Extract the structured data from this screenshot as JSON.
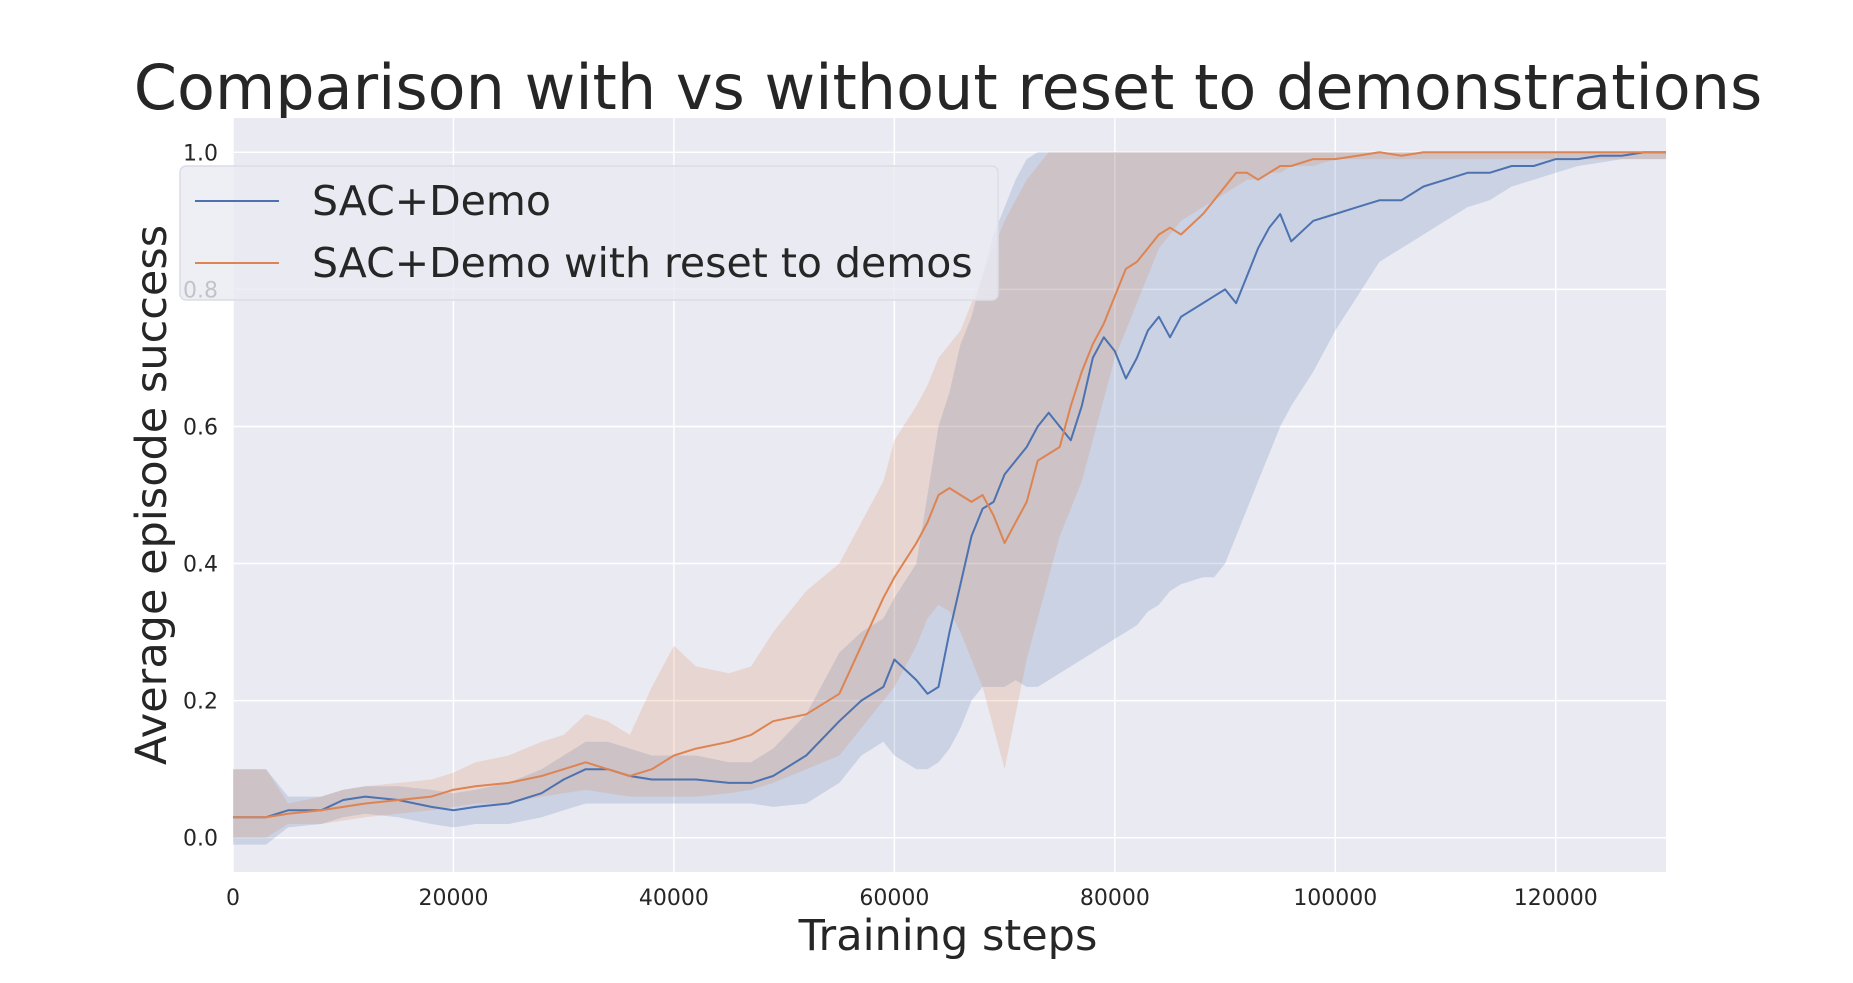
{
  "chart_data": {
    "type": "line",
    "title": "Comparison with vs without reset to demonstrations",
    "xlabel": "Training steps",
    "ylabel": "Average episode success",
    "xlim": [
      0,
      130000
    ],
    "ylim": [
      -0.05,
      1.05
    ],
    "xticks": [
      0,
      20000,
      40000,
      60000,
      80000,
      100000,
      120000
    ],
    "xtick_labels": [
      "0",
      "20000",
      "40000",
      "60000",
      "80000",
      "100000",
      "120000"
    ],
    "yticks": [
      0.0,
      0.2,
      0.4,
      0.6,
      0.8,
      1.0
    ],
    "ytick_labels": [
      "0.0",
      "0.2",
      "0.4",
      "0.6",
      "0.8",
      "1.0"
    ],
    "grid": true,
    "legend_position": "top-left",
    "background": "#eaeaf2",
    "series": [
      {
        "name": "SAC+Demo",
        "color": "#4c72b0",
        "x": [
          0,
          3000,
          5000,
          8000,
          10000,
          12000,
          15000,
          18000,
          20000,
          22000,
          25000,
          28000,
          30000,
          32000,
          34000,
          36000,
          38000,
          40000,
          42000,
          45000,
          47000,
          49000,
          52000,
          55000,
          57000,
          59000,
          60000,
          62000,
          63000,
          64000,
          65000,
          66000,
          67000,
          68000,
          69000,
          70000,
          71000,
          72000,
          73000,
          74000,
          75000,
          76000,
          77000,
          78000,
          79000,
          80000,
          81000,
          82000,
          83000,
          84000,
          85000,
          86000,
          88000,
          89000,
          90000,
          91000,
          92000,
          93000,
          94000,
          95000,
          96000,
          98000,
          100000,
          102000,
          104000,
          106000,
          108000,
          110000,
          112000,
          114000,
          116000,
          118000,
          120000,
          122000,
          124000,
          126000,
          128000,
          130000
        ],
        "y": [
          0.03,
          0.03,
          0.04,
          0.04,
          0.055,
          0.06,
          0.055,
          0.045,
          0.04,
          0.045,
          0.05,
          0.065,
          0.085,
          0.1,
          0.1,
          0.09,
          0.085,
          0.085,
          0.085,
          0.08,
          0.08,
          0.09,
          0.12,
          0.17,
          0.2,
          0.22,
          0.26,
          0.23,
          0.21,
          0.22,
          0.3,
          0.37,
          0.44,
          0.48,
          0.49,
          0.53,
          0.55,
          0.57,
          0.6,
          0.62,
          0.6,
          0.58,
          0.63,
          0.7,
          0.73,
          0.71,
          0.67,
          0.7,
          0.74,
          0.76,
          0.73,
          0.76,
          0.78,
          0.79,
          0.8,
          0.78,
          0.82,
          0.86,
          0.89,
          0.91,
          0.87,
          0.9,
          0.91,
          0.92,
          0.93,
          0.93,
          0.95,
          0.96,
          0.97,
          0.97,
          0.98,
          0.98,
          0.99,
          0.99,
          0.995,
          0.995,
          1.0,
          1.0
        ],
        "band_low": [
          -0.01,
          -0.01,
          0.015,
          0.02,
          0.03,
          0.035,
          0.03,
          0.02,
          0.015,
          0.02,
          0.02,
          0.03,
          0.04,
          0.05,
          0.05,
          0.05,
          0.05,
          0.05,
          0.05,
          0.05,
          0.05,
          0.045,
          0.05,
          0.08,
          0.12,
          0.14,
          0.12,
          0.1,
          0.1,
          0.11,
          0.13,
          0.16,
          0.2,
          0.22,
          0.22,
          0.22,
          0.23,
          0.22,
          0.22,
          0.23,
          0.24,
          0.25,
          0.26,
          0.27,
          0.28,
          0.29,
          0.3,
          0.31,
          0.33,
          0.34,
          0.36,
          0.37,
          0.38,
          0.38,
          0.4,
          0.44,
          0.48,
          0.52,
          0.56,
          0.6,
          0.63,
          0.68,
          0.74,
          0.79,
          0.84,
          0.86,
          0.88,
          0.9,
          0.92,
          0.93,
          0.95,
          0.96,
          0.97,
          0.98,
          0.985,
          0.99,
          0.99,
          0.99
        ],
        "band_high": [
          0.1,
          0.1,
          0.06,
          0.06,
          0.07,
          0.075,
          0.075,
          0.07,
          0.065,
          0.07,
          0.08,
          0.1,
          0.12,
          0.14,
          0.14,
          0.13,
          0.12,
          0.12,
          0.12,
          0.11,
          0.11,
          0.13,
          0.18,
          0.27,
          0.3,
          0.32,
          0.35,
          0.4,
          0.5,
          0.6,
          0.65,
          0.72,
          0.76,
          0.82,
          0.88,
          0.92,
          0.96,
          0.99,
          1.0,
          1.0,
          1.0,
          1.0,
          1.0,
          1.0,
          1.0,
          1.0,
          1.0,
          1.0,
          1.0,
          1.0,
          1.0,
          1.0,
          1.0,
          1.0,
          1.0,
          1.0,
          1.0,
          1.0,
          1.0,
          1.0,
          1.0,
          1.0,
          1.0,
          1.0,
          1.0,
          1.0,
          1.0,
          1.0,
          1.0,
          1.0,
          1.0,
          1.0,
          1.0,
          1.0,
          1.0,
          1.0,
          1.0,
          1.0
        ]
      },
      {
        "name": "SAC+Demo with reset to demos",
        "color": "#dd8452",
        "x": [
          0,
          3000,
          5000,
          8000,
          10000,
          12000,
          15000,
          18000,
          20000,
          22000,
          25000,
          28000,
          30000,
          32000,
          34000,
          36000,
          38000,
          40000,
          42000,
          45000,
          47000,
          49000,
          52000,
          55000,
          57000,
          59000,
          60000,
          62000,
          63000,
          64000,
          65000,
          66000,
          67000,
          68000,
          69000,
          70000,
          71000,
          72000,
          73000,
          74000,
          75000,
          76000,
          77000,
          78000,
          79000,
          80000,
          81000,
          82000,
          83000,
          84000,
          85000,
          86000,
          88000,
          89000,
          90000,
          91000,
          92000,
          93000,
          94000,
          95000,
          96000,
          98000,
          100000,
          102000,
          104000,
          106000,
          108000,
          110000,
          112000,
          114000,
          116000,
          118000,
          120000,
          122000,
          124000,
          126000,
          128000,
          130000
        ],
        "y": [
          0.03,
          0.03,
          0.035,
          0.04,
          0.045,
          0.05,
          0.055,
          0.06,
          0.07,
          0.075,
          0.08,
          0.09,
          0.1,
          0.11,
          0.1,
          0.09,
          0.1,
          0.12,
          0.13,
          0.14,
          0.15,
          0.17,
          0.18,
          0.21,
          0.28,
          0.35,
          0.38,
          0.43,
          0.46,
          0.5,
          0.51,
          0.5,
          0.49,
          0.5,
          0.47,
          0.43,
          0.46,
          0.49,
          0.55,
          0.56,
          0.57,
          0.63,
          0.68,
          0.72,
          0.75,
          0.79,
          0.83,
          0.84,
          0.86,
          0.88,
          0.89,
          0.88,
          0.91,
          0.93,
          0.95,
          0.97,
          0.97,
          0.96,
          0.97,
          0.98,
          0.98,
          0.99,
          0.99,
          0.995,
          1.0,
          0.995,
          1.0,
          1.0,
          1.0,
          1.0,
          1.0,
          1.0,
          1.0,
          1.0,
          1.0,
          1.0,
          1.0,
          1.0
        ],
        "band_low": [
          0.0,
          0.0,
          0.02,
          0.02,
          0.025,
          0.03,
          0.035,
          0.04,
          0.045,
          0.05,
          0.05,
          0.06,
          0.065,
          0.07,
          0.065,
          0.06,
          0.06,
          0.06,
          0.06,
          0.065,
          0.07,
          0.08,
          0.1,
          0.12,
          0.16,
          0.2,
          0.22,
          0.28,
          0.32,
          0.34,
          0.33,
          0.3,
          0.26,
          0.22,
          0.16,
          0.1,
          0.18,
          0.26,
          0.32,
          0.38,
          0.44,
          0.48,
          0.52,
          0.58,
          0.64,
          0.7,
          0.74,
          0.78,
          0.82,
          0.86,
          0.88,
          0.9,
          0.92,
          0.93,
          0.94,
          0.95,
          0.96,
          0.96,
          0.97,
          0.97,
          0.98,
          0.98,
          0.99,
          0.99,
          0.99,
          0.99,
          0.99,
          0.99,
          0.99,
          0.99,
          0.99,
          0.99,
          0.99,
          0.99,
          0.99,
          0.99,
          0.99,
          0.99
        ],
        "band_high": [
          0.1,
          0.1,
          0.05,
          0.06,
          0.07,
          0.075,
          0.08,
          0.085,
          0.095,
          0.11,
          0.12,
          0.14,
          0.15,
          0.18,
          0.17,
          0.15,
          0.22,
          0.28,
          0.25,
          0.24,
          0.25,
          0.3,
          0.36,
          0.4,
          0.46,
          0.52,
          0.58,
          0.63,
          0.66,
          0.7,
          0.72,
          0.74,
          0.78,
          0.82,
          0.86,
          0.9,
          0.93,
          0.96,
          0.98,
          1.0,
          1.0,
          1.0,
          1.0,
          1.0,
          1.0,
          1.0,
          1.0,
          1.0,
          1.0,
          1.0,
          1.0,
          1.0,
          1.0,
          1.0,
          1.0,
          1.0,
          1.0,
          1.0,
          1.0,
          1.0,
          1.0,
          1.0,
          1.0,
          1.0,
          1.0,
          1.0,
          1.0,
          1.0,
          1.0,
          1.0,
          1.0,
          1.0,
          1.0,
          1.0,
          1.0,
          1.0,
          1.0,
          1.0
        ]
      }
    ]
  }
}
